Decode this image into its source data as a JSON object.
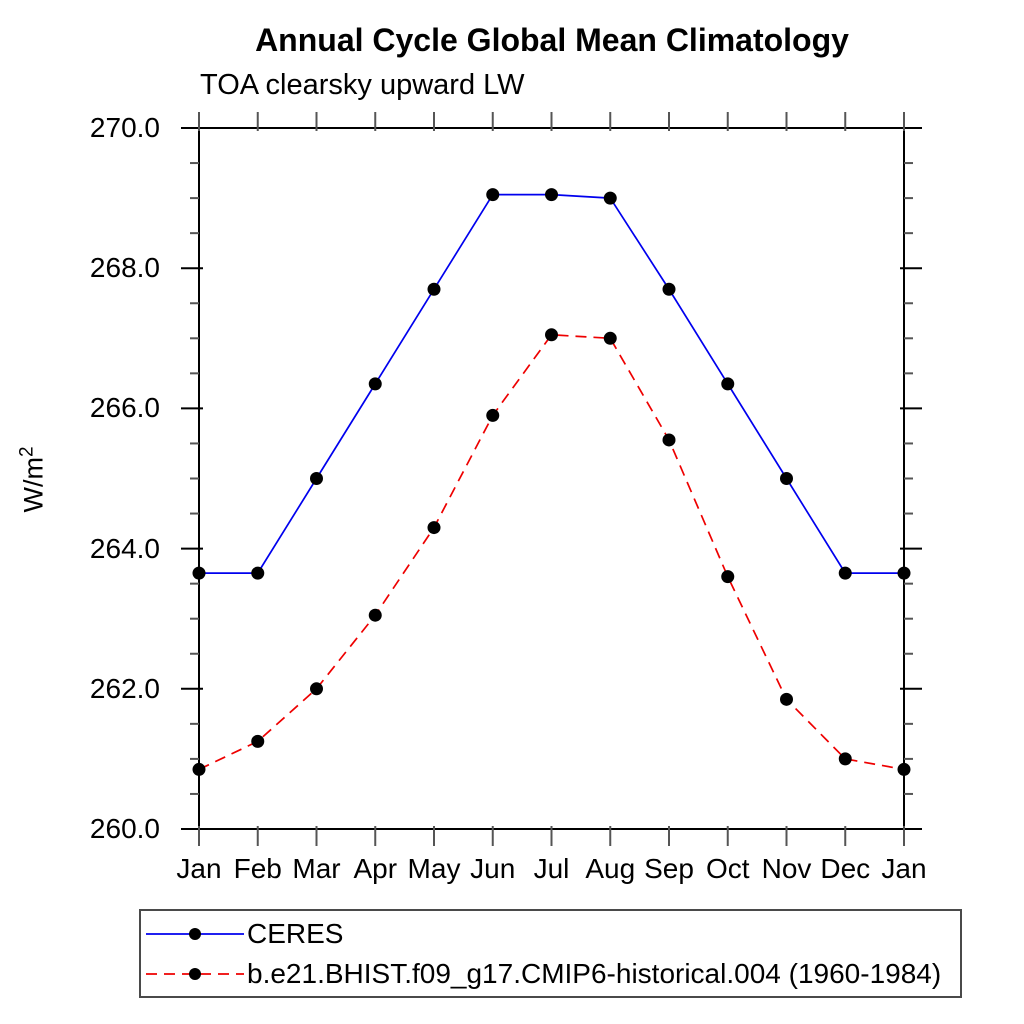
{
  "title": "Annual Cycle Global Mean Climatology",
  "subtitle": "TOA clearsky upward LW",
  "y_axis": {
    "label_base": "W/m",
    "label_exp": "2",
    "tick_labels": [
      "270.0",
      "268.0",
      "266.0",
      "264.0",
      "262.0",
      "260.0"
    ],
    "tick_values": [
      270,
      268,
      266,
      264,
      262,
      260
    ],
    "minor_step": 0.5
  },
  "x_axis": {
    "tick_labels": [
      "Jan",
      "Feb",
      "Mar",
      "Apr",
      "May",
      "Jun",
      "Jul",
      "Aug",
      "Sep",
      "Oct",
      "Nov",
      "Dec",
      "Jan"
    ]
  },
  "chart_data": {
    "type": "line",
    "title": "Annual Cycle Global Mean Climatology",
    "subtitle": "TOA clearsky upward LW",
    "xlabel": "",
    "ylabel": "W/m2",
    "categories": [
      "Jan",
      "Feb",
      "Mar",
      "Apr",
      "May",
      "Jun",
      "Jul",
      "Aug",
      "Sep",
      "Oct",
      "Nov",
      "Dec",
      "Jan"
    ],
    "ylim": [
      260.0,
      270.0
    ],
    "y_major_step": 2.0,
    "y_minor_step": 0.5,
    "grid": false,
    "legend_position": "bottom-left-box",
    "series": [
      {
        "name": "CERES",
        "color": "#0000ee",
        "line_style": "solid",
        "marker": "circle",
        "marker_color": "#000000",
        "values": [
          263.65,
          263.65,
          265.0,
          266.35,
          267.7,
          269.05,
          269.05,
          269.0,
          267.7,
          266.35,
          265.0,
          263.65,
          263.65
        ]
      },
      {
        "name": "b.e21.BHIST.f09_g17.CMIP6-historical.004 (1960-1984)",
        "color": "#ee0000",
        "line_style": "dashed",
        "marker": "circle",
        "marker_color": "#000000",
        "values": [
          260.85,
          261.25,
          262.0,
          263.05,
          264.3,
          265.9,
          267.05,
          267.0,
          265.55,
          263.6,
          261.85,
          261.0,
          260.85
        ]
      }
    ]
  },
  "colors": {
    "axis": "#000000",
    "minor_tick": "#555555",
    "legend_border": "#4a4a4a"
  }
}
